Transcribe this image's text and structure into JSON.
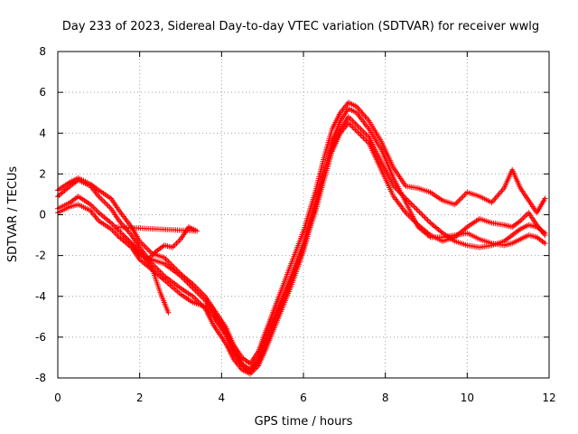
{
  "chart_data": {
    "type": "scatter",
    "title": "Day 233 of 2023, Sidereal Day-to-day VTEC variation (SDTVAR) for receiver wwlg",
    "xlabel": "GPS time / hours",
    "ylabel": "SDTVAR / TECUs",
    "xlim": [
      0,
      12
    ],
    "ylim": [
      -8,
      8
    ],
    "x_ticks": [
      0,
      2,
      4,
      6,
      8,
      10,
      12
    ],
    "y_ticks": [
      -8,
      -6,
      -4,
      -2,
      0,
      2,
      4,
      6,
      8
    ],
    "x_tick_labels": [
      "0",
      "2",
      "4",
      "6",
      "8",
      "10",
      "12"
    ],
    "y_tick_labels": [
      "-8",
      "-6",
      "-4",
      "-2",
      "0",
      "2",
      "4",
      "6",
      "8"
    ],
    "grid": true,
    "marker": "+",
    "color": "#ff0000",
    "series": [
      {
        "name": "track-1",
        "x": [
          0.0,
          0.3,
          0.5,
          0.8,
          1.0,
          1.3,
          1.5,
          1.8,
          2.0,
          2.3,
          2.6,
          3.0,
          3.3,
          3.6,
          3.8,
          4.1,
          4.3,
          4.5,
          4.7,
          4.9,
          5.1,
          5.4,
          5.7,
          6.0,
          6.3,
          6.5,
          6.7,
          6.9,
          7.1,
          7.3,
          7.6,
          7.9,
          8.2,
          8.5,
          8.8,
          9.1,
          9.4,
          9.7,
          10.0,
          10.3,
          10.6,
          10.9,
          11.1,
          11.3,
          11.5,
          11.7,
          11.9
        ],
        "y": [
          0.3,
          0.6,
          0.9,
          0.5,
          0.1,
          -0.4,
          -0.8,
          -1.4,
          -2.0,
          -2.2,
          -2.4,
          -3.0,
          -3.6,
          -4.2,
          -4.8,
          -5.7,
          -6.6,
          -7.3,
          -7.6,
          -7.0,
          -6.0,
          -4.5,
          -3.0,
          -1.4,
          0.6,
          2.1,
          3.3,
          4.2,
          4.8,
          4.4,
          3.8,
          2.6,
          1.4,
          0.8,
          0.2,
          -0.4,
          -0.9,
          -1.3,
          -1.5,
          -1.6,
          -1.5,
          -1.3,
          -1.0,
          -0.7,
          -0.5,
          -0.6,
          -0.9
        ]
      },
      {
        "name": "track-2",
        "x": [
          0.0,
          0.3,
          0.5,
          0.8,
          1.0,
          1.3,
          1.5,
          1.8,
          2.0,
          2.3,
          2.6,
          3.0,
          3.3,
          3.6,
          3.8,
          4.1,
          4.3,
          4.5,
          4.7,
          4.9,
          5.1,
          5.4,
          5.7,
          6.0,
          6.3,
          6.5,
          6.7,
          6.9,
          7.1,
          7.3,
          7.6,
          7.9,
          8.2,
          8.5,
          8.8,
          9.1,
          9.4,
          9.7,
          10.0,
          10.3,
          10.6,
          10.9,
          11.1,
          11.3,
          11.5,
          11.7,
          11.9
        ],
        "y": [
          0.9,
          1.4,
          1.7,
          1.4,
          0.9,
          0.3,
          -0.3,
          -1.0,
          -1.6,
          -2.4,
          -3.0,
          -3.6,
          -4.0,
          -4.6,
          -5.4,
          -6.3,
          -7.1,
          -7.6,
          -7.8,
          -7.4,
          -6.5,
          -5.0,
          -3.5,
          -1.8,
          0.4,
          2.0,
          3.6,
          4.6,
          5.2,
          5.0,
          4.2,
          3.2,
          1.8,
          0.6,
          -0.6,
          -1.1,
          -1.1,
          -1.0,
          -0.9,
          -1.2,
          -1.4,
          -1.5,
          -1.4,
          -1.2,
          -1.0,
          -1.1,
          -1.4
        ]
      },
      {
        "name": "track-3",
        "x": [
          0.0,
          0.3,
          0.5,
          0.8,
          1.0,
          1.3,
          1.5,
          1.8,
          2.0,
          2.3,
          2.6,
          3.0,
          3.3,
          3.6,
          3.8,
          4.1,
          4.3,
          4.5,
          4.7,
          4.9,
          5.1,
          5.4,
          5.7,
          6.0,
          6.3,
          6.5,
          6.7,
          6.9,
          7.1,
          7.3,
          7.6,
          7.9,
          8.2,
          8.5,
          8.8,
          9.1,
          9.4,
          9.7,
          10.0,
          10.3,
          10.6,
          10.9,
          11.1,
          11.3,
          11.5,
          11.7,
          11.9
        ],
        "y": [
          1.2,
          1.6,
          1.8,
          1.5,
          1.2,
          0.8,
          0.2,
          -0.6,
          -1.3,
          -1.9,
          -2.1,
          -2.9,
          -3.4,
          -4.0,
          -4.6,
          -5.5,
          -6.4,
          -7.0,
          -7.3,
          -6.7,
          -5.6,
          -4.0,
          -2.4,
          -0.8,
          1.2,
          2.8,
          4.2,
          5.0,
          5.5,
          5.3,
          4.6,
          3.6,
          2.3,
          1.4,
          1.3,
          1.1,
          0.7,
          0.5,
          1.1,
          0.9,
          0.6,
          1.3,
          2.2,
          1.3,
          0.7,
          0.1,
          0.8
        ]
      },
      {
        "name": "track-4",
        "x": [
          0.0,
          0.3,
          0.5,
          0.8,
          1.0,
          1.3,
          1.5,
          1.8,
          2.0,
          2.3,
          2.6,
          3.0,
          3.3,
          3.6,
          3.8,
          4.1,
          4.3,
          4.5,
          4.7,
          4.9,
          5.1,
          5.4,
          5.7,
          6.0,
          6.3,
          6.5,
          6.7,
          6.9,
          7.1,
          7.3,
          7.6,
          7.9,
          8.2,
          8.5,
          8.8,
          9.1,
          9.4,
          9.7,
          10.0,
          10.3,
          10.6,
          10.9,
          11.1,
          11.3,
          11.5,
          11.7,
          11.9
        ],
        "y": [
          0.1,
          0.4,
          0.5,
          0.2,
          -0.3,
          -0.7,
          -1.1,
          -1.6,
          -2.2,
          -2.7,
          -3.2,
          -3.9,
          -4.3,
          -4.5,
          -5.0,
          -5.9,
          -6.8,
          -7.4,
          -7.7,
          -7.2,
          -6.3,
          -4.7,
          -3.2,
          -1.6,
          0.2,
          1.7,
          3.1,
          4.0,
          4.5,
          4.1,
          3.5,
          2.2,
          0.9,
          0.1,
          -0.5,
          -1.0,
          -1.3,
          -1.1,
          -0.6,
          -0.2,
          -0.4,
          -0.5,
          -0.6,
          -0.3,
          0.1,
          -0.5,
          -1.0
        ]
      },
      {
        "name": "track-5",
        "x": [
          2.2,
          2.4,
          2.6,
          2.8,
          3.0,
          3.2,
          3.4,
          1.4,
          1.7,
          2.0,
          2.3,
          2.5,
          2.7
        ],
        "y": [
          -2.2,
          -1.8,
          -1.5,
          -1.6,
          -1.2,
          -0.6,
          -0.8,
          -0.6,
          -1.2,
          -1.8,
          -2.6,
          -3.8,
          -4.8
        ]
      }
    ]
  }
}
